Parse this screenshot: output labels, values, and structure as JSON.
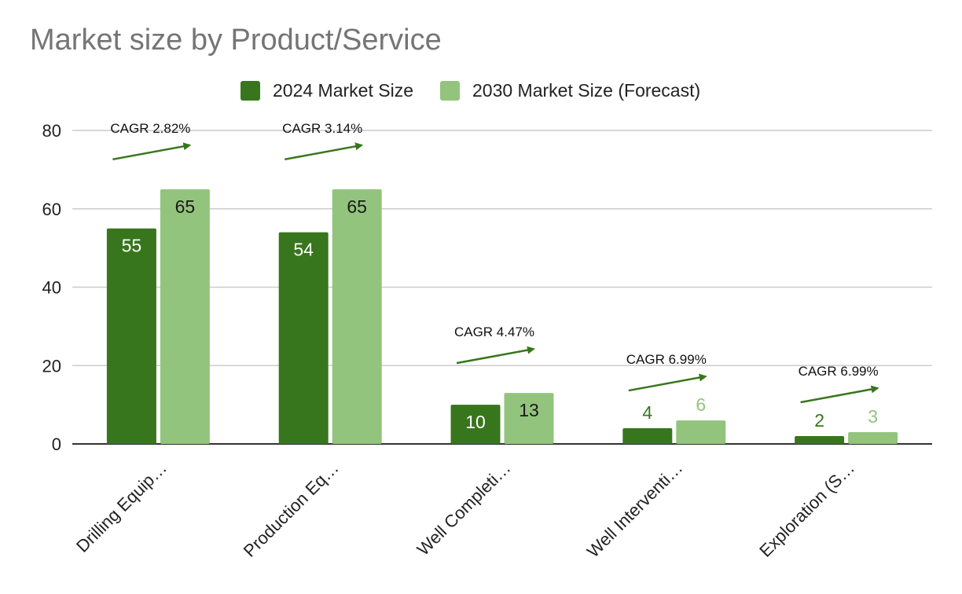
{
  "colors": {
    "series_2024": "#38761d",
    "series_2030": "#93c47d",
    "gridline": "#cccccc",
    "axis": "#333333",
    "arrow": "#38761d",
    "title": "#757575"
  },
  "chart_data": {
    "type": "bar",
    "title": "Market size by Product/Service",
    "xlabel": "",
    "ylabel": "",
    "ylim": [
      0,
      80
    ],
    "yticks": [
      0,
      20,
      40,
      60,
      80
    ],
    "grid": true,
    "legend_position": "top",
    "categories": [
      "Drilling Equip…",
      "Production Eq…",
      "Well Completi…",
      "Well Interventi…",
      "Exploration (S…"
    ],
    "series": [
      {
        "name": "2024 Market Size",
        "values": [
          55,
          54,
          10,
          4,
          2
        ],
        "labels": [
          "55",
          "54",
          "10",
          "4",
          "2"
        ]
      },
      {
        "name": "2030 Market Size (Forecast)",
        "values": [
          65,
          65,
          13,
          6,
          3
        ],
        "labels": [
          "65",
          "65",
          "13",
          "6",
          "3"
        ]
      }
    ],
    "annotations": [
      {
        "category": "Drilling Equip…",
        "text": "CAGR 2.82%"
      },
      {
        "category": "Production Eq…",
        "text": "CAGR 3.14%"
      },
      {
        "category": "Well Completi…",
        "text": "CAGR 4.47%"
      },
      {
        "category": "Well Interventi…",
        "text": "CAGR 6.99%"
      },
      {
        "category": "Exploration (S…",
        "text": "CAGR 6.99%"
      }
    ]
  }
}
